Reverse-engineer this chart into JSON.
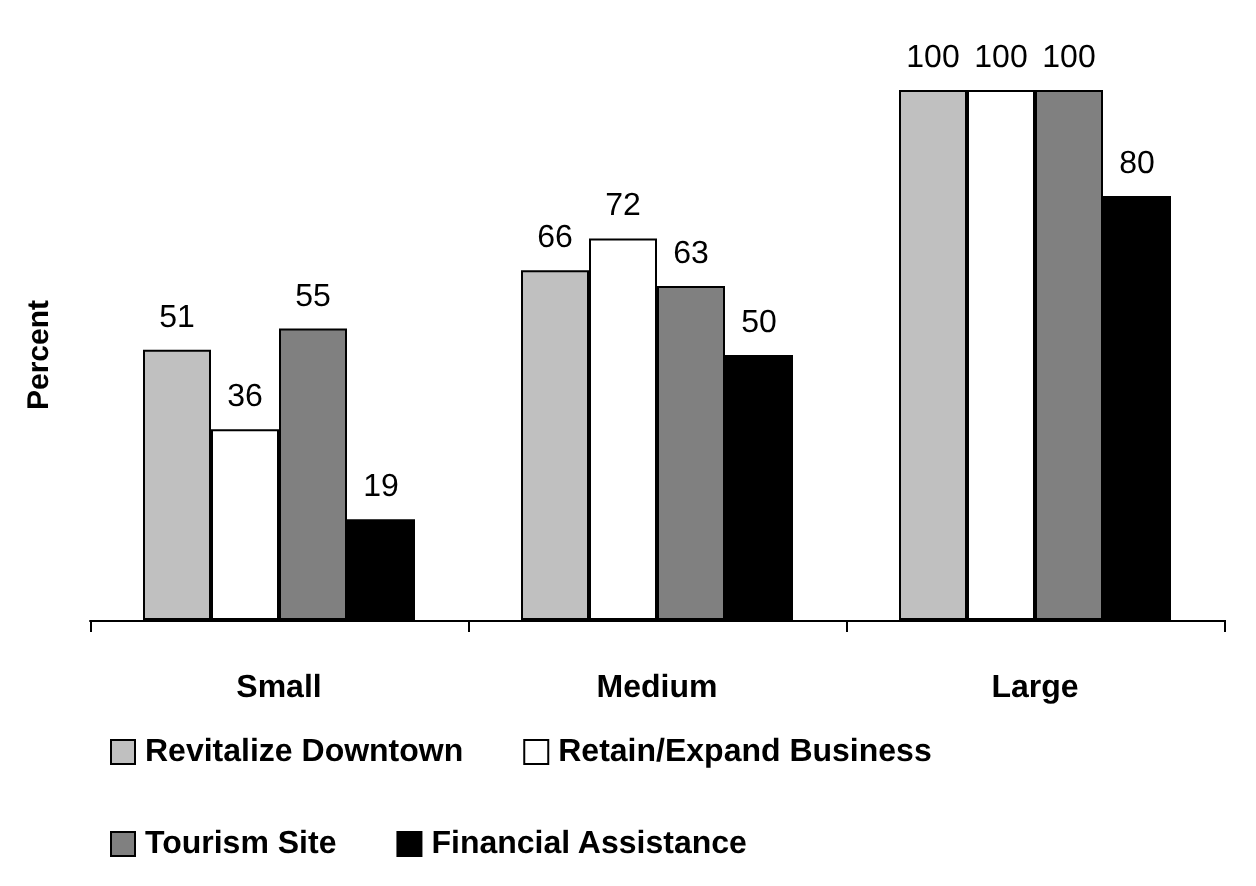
{
  "chart_data": {
    "type": "bar",
    "ylabel": "Percent",
    "categories": [
      "Small",
      "Medium",
      "Large"
    ],
    "series": [
      {
        "name": "Revitalize Downtown",
        "color": "#c0c0c0",
        "values": [
          51,
          66,
          100
        ]
      },
      {
        "name": "Retain/Expand Business",
        "color": "#ffffff",
        "values": [
          36,
          72,
          100
        ]
      },
      {
        "name": "Tourism Site",
        "color": "#808080",
        "values": [
          55,
          63,
          100
        ]
      },
      {
        "name": "Financial Assistance",
        "color": "#000000",
        "values": [
          19,
          50,
          80
        ]
      }
    ],
    "ylim": [
      0,
      100
    ],
    "tick_labels": "x",
    "data_labels": true,
    "grid": false,
    "legend": "bottom"
  }
}
